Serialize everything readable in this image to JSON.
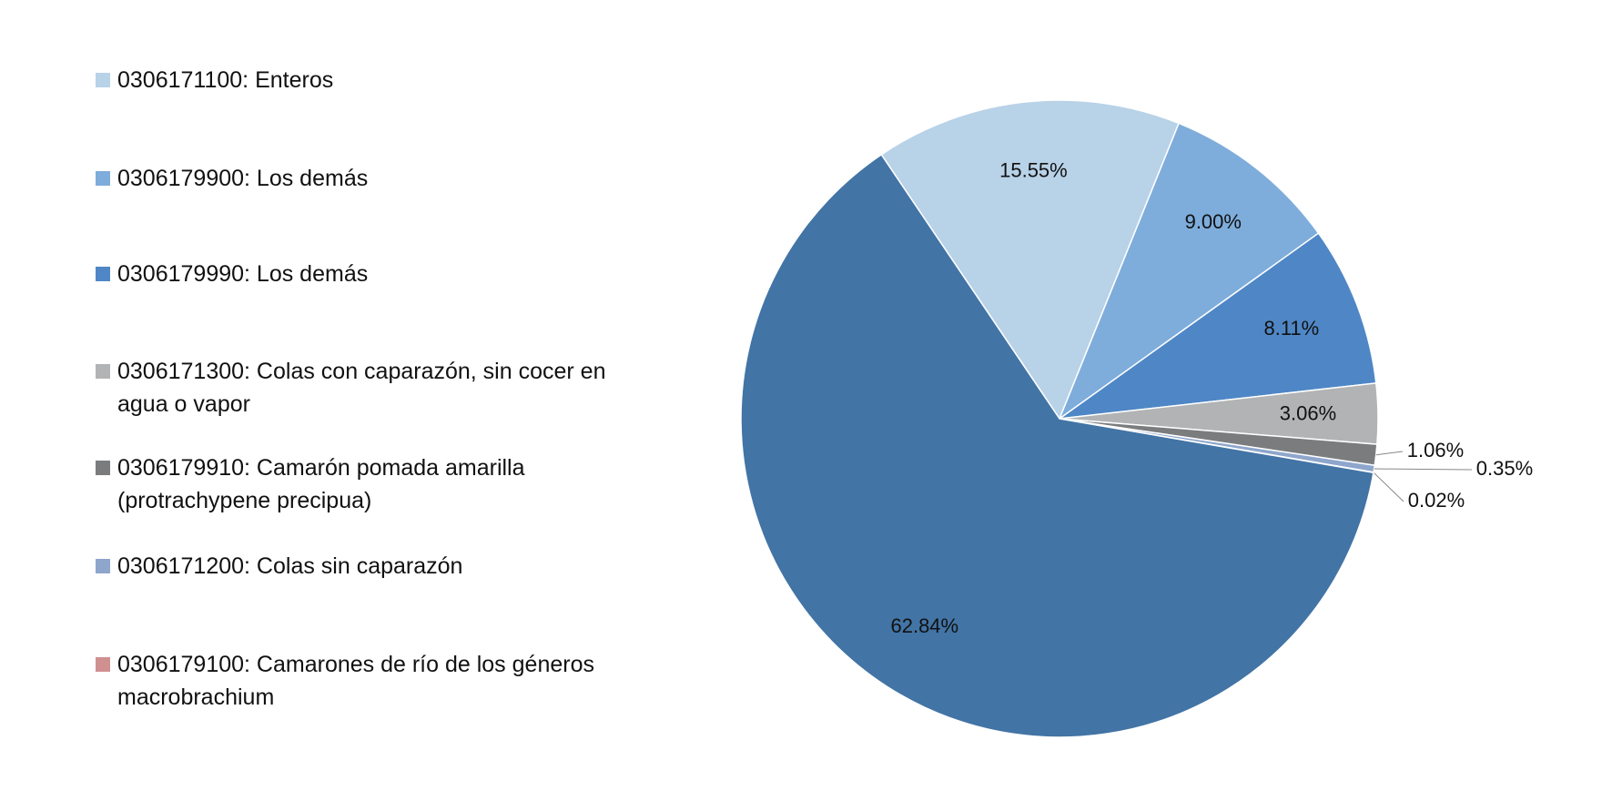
{
  "chart_data": {
    "type": "pie",
    "categories": [
      "0306171100: Enteros",
      "0306179900: Los demás",
      "0306179990: Los demás",
      "0306171300: Colas con caparazón, sin cocer en agua o vapor",
      "0306179910: Camarón pomada amarilla (protrachypene precipua)",
      "0306171200: Colas sin caparazón",
      "0306179100: Camarones de río de los géneros macrobrachium",
      null
    ],
    "values": [
      15.55,
      9.0,
      8.11,
      3.06,
      1.06,
      0.35,
      0.02,
      62.84
    ],
    "value_labels": [
      "15.55%",
      "9.00%",
      "8.11%",
      "3.06%",
      "1.06%",
      "0.35%",
      "0.02%",
      "62.84%"
    ],
    "colors": [
      "#b8d2e8",
      "#7eaddc",
      "#4f87c6",
      "#b1b3b4",
      "#7a7c7e",
      "#8ea6cc",
      "#d09090",
      "#4274a5"
    ],
    "legend": "left"
  }
}
